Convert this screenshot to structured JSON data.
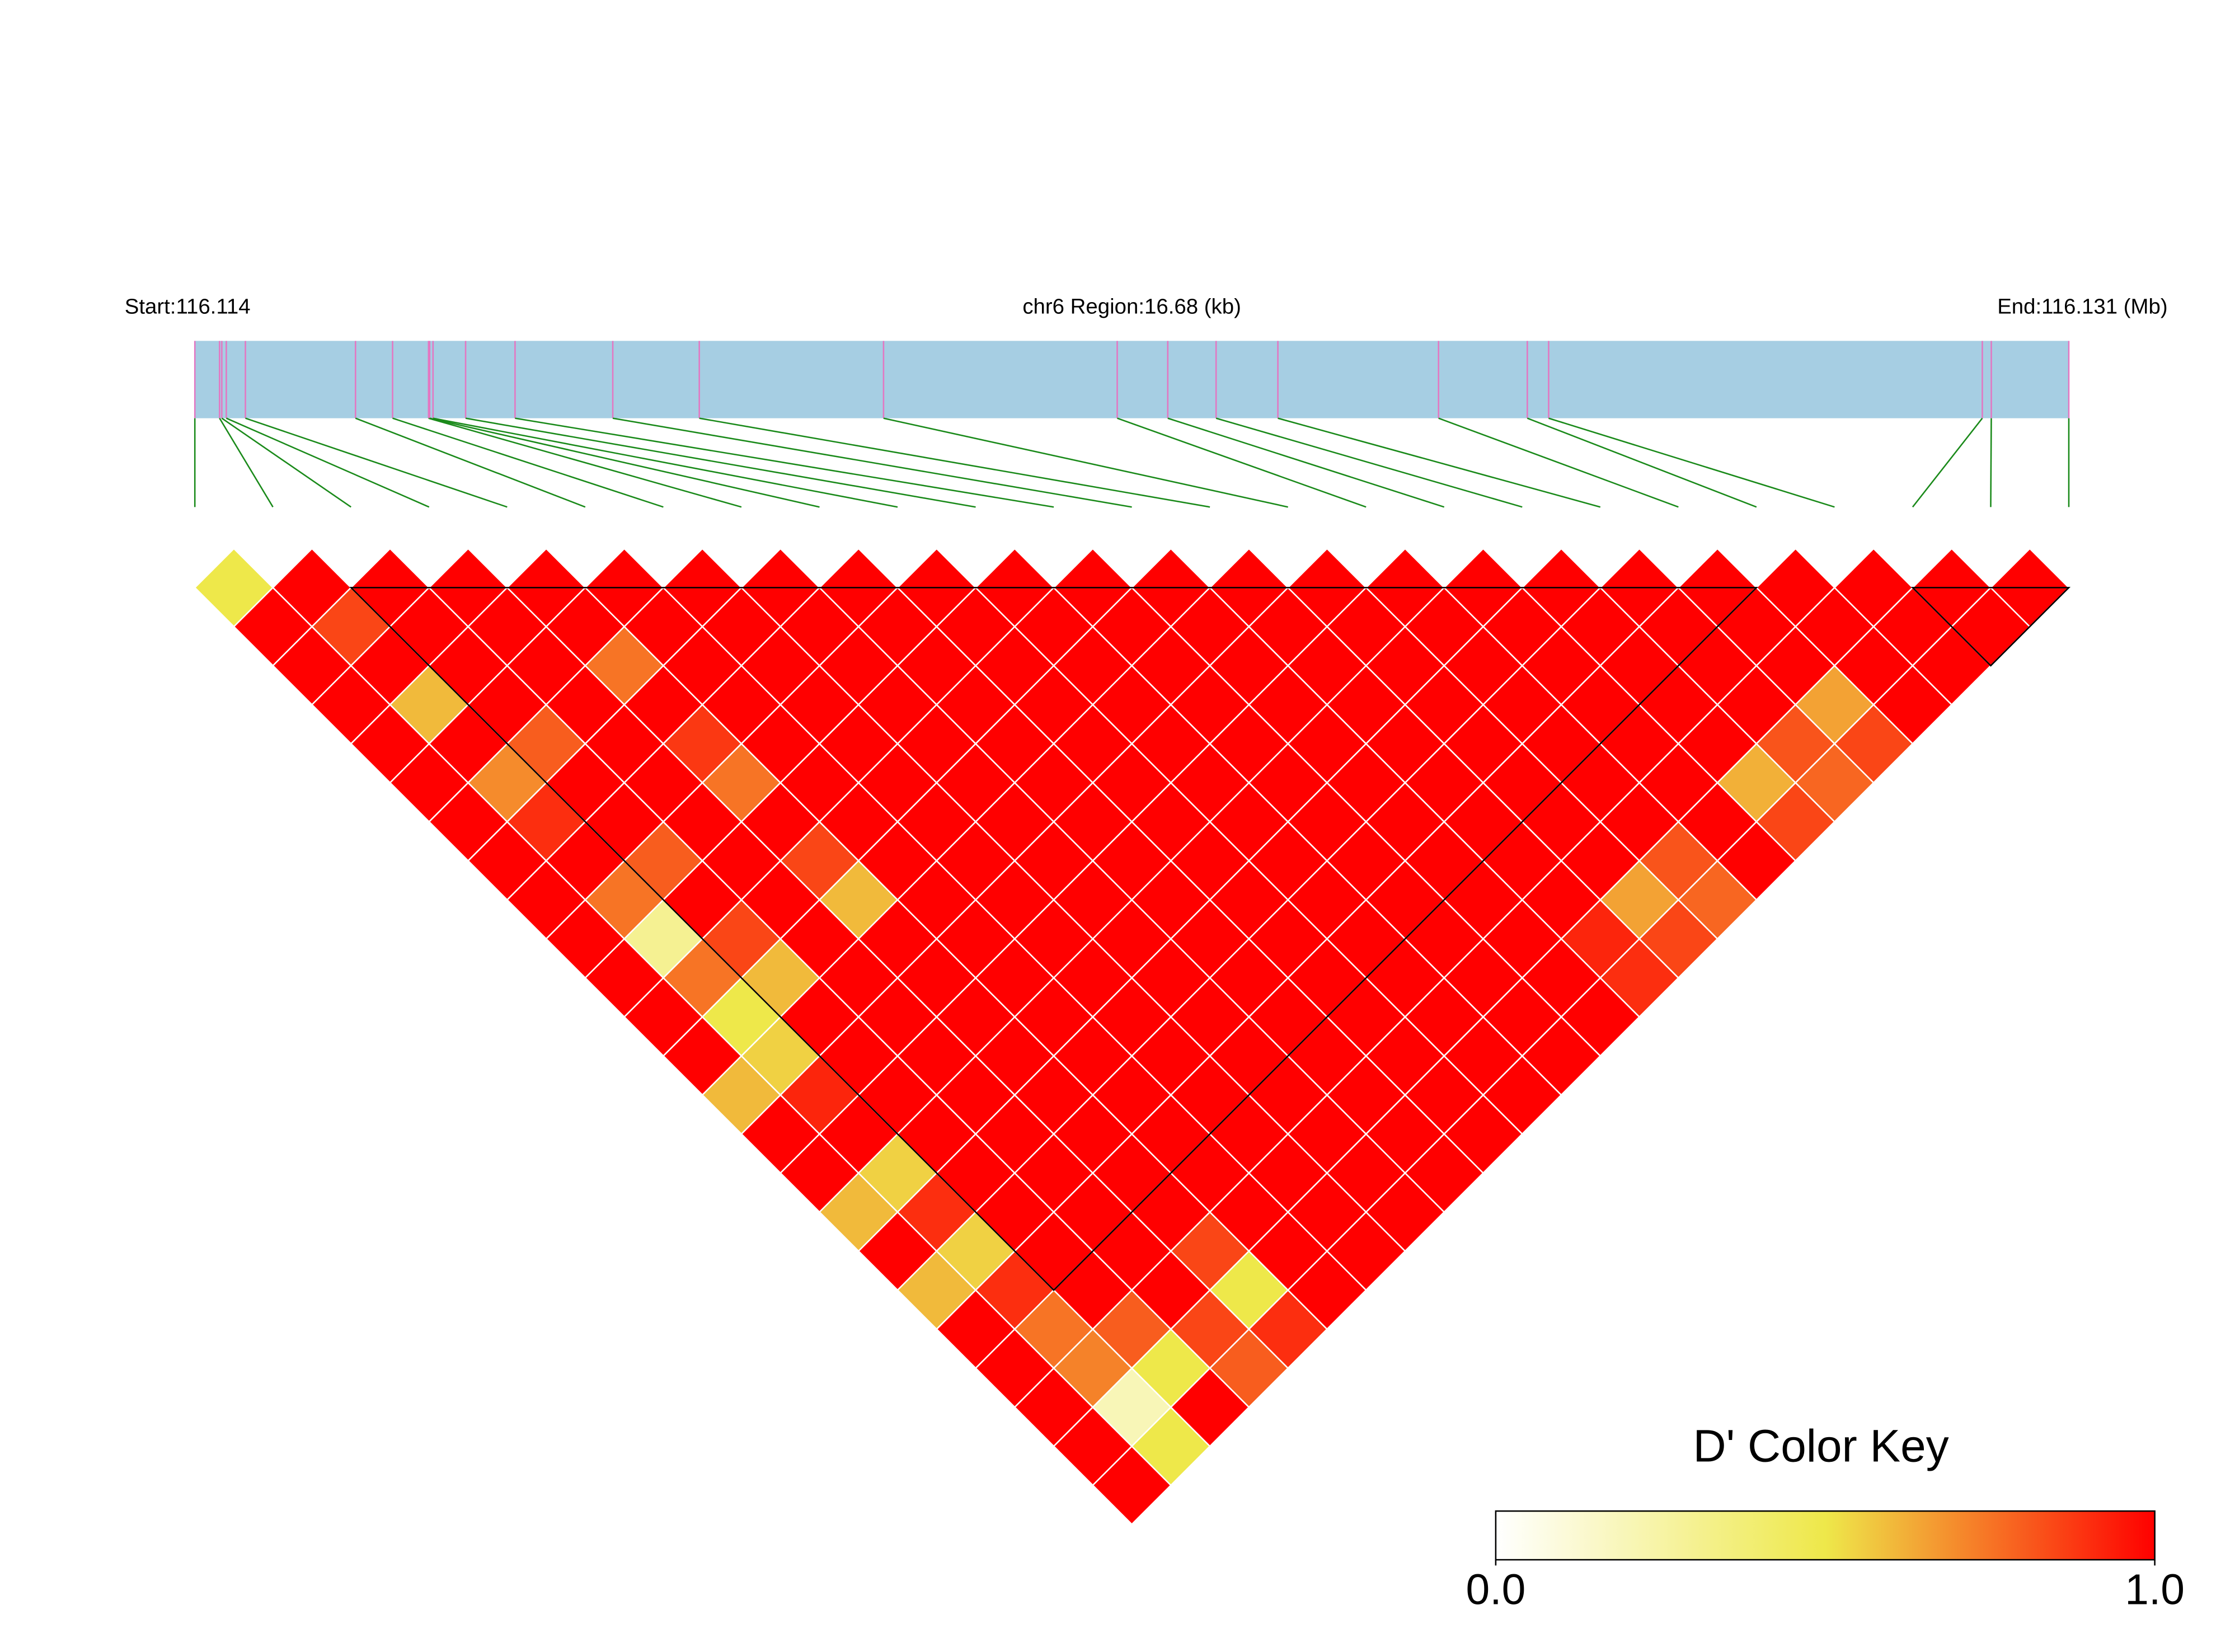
{
  "chart_data": {
    "type": "ld-heatmap",
    "start_label": "Start:116.114",
    "region_label": "chr6 Region:16.68 (kb)",
    "end_label": "End:116.131 (Mb)",
    "xlim": [
      0,
      16.68
    ],
    "snp_positions": [
      0,
      0.22,
      0.24,
      0.28,
      0.45,
      1.43,
      1.76,
      2.08,
      2.09,
      2.12,
      2.41,
      2.85,
      3.72,
      4.49,
      6.13,
      8.21,
      8.66,
      9.09,
      9.64,
      11.07,
      11.86,
      12.05,
      15.91,
      15.99,
      16.68
    ],
    "dprime": [
      [
        0.5,
        1,
        1,
        1,
        1,
        1,
        1,
        1,
        1,
        1,
        1,
        1,
        1,
        0.6,
        1,
        1,
        0.6,
        1,
        0.6,
        1,
        1,
        1,
        1,
        1
      ],
      [
        1,
        0.85,
        1,
        0.6,
        1,
        0.7,
        0.9,
        1,
        0.75,
        0.3,
        0.75,
        0.5,
        0.55,
        0.92,
        1,
        0.55,
        0.9,
        0.55,
        0.9,
        0.75,
        0.72,
        0.2,
        0.5
      ],
      [
        1,
        1,
        1,
        1,
        0.8,
        1,
        1,
        0.8,
        1,
        0.85,
        0.6,
        1,
        1,
        1,
        1,
        1,
        1,
        1,
        1,
        0.8,
        0.5,
        1
      ],
      [
        1,
        1,
        1,
        1,
        1,
        1,
        1,
        1,
        1,
        1,
        1,
        1,
        1,
        1,
        1,
        1,
        1,
        1,
        1,
        0.85,
        0.8
      ],
      [
        1,
        1,
        0.75,
        1,
        0.88,
        0.75,
        1,
        0.85,
        0.6,
        1,
        1,
        1,
        1,
        1,
        1,
        1,
        1,
        0.85,
        0.5,
        0.9
      ],
      [
        1,
        1,
        1,
        1,
        1,
        1,
        1,
        1,
        1,
        1,
        1,
        1,
        1,
        1,
        1,
        1,
        1,
        1,
        1
      ],
      [
        1,
        1,
        1,
        1,
        1,
        1,
        1,
        1,
        1,
        1,
        1,
        1,
        1,
        1,
        1,
        1,
        1,
        1
      ],
      [
        1,
        1,
        1,
        1,
        1,
        1,
        1,
        1,
        1,
        1,
        1,
        1,
        1,
        1,
        1,
        1,
        1
      ],
      [
        1,
        1,
        1,
        1,
        1,
        1,
        1,
        1,
        1,
        1,
        1,
        1,
        1,
        1,
        1,
        1
      ],
      [
        1,
        1,
        1,
        1,
        1,
        1,
        1,
        1,
        1,
        1,
        1,
        1,
        1,
        1,
        1
      ],
      [
        1,
        1,
        1,
        1,
        1,
        1,
        1,
        1,
        1,
        1,
        1,
        1,
        1,
        1
      ],
      [
        1,
        1,
        1,
        1,
        1,
        1,
        1,
        1,
        1,
        1,
        1,
        1,
        1
      ],
      [
        1,
        1,
        1,
        1,
        1,
        1,
        1,
        1,
        1,
        1,
        1,
        1
      ],
      [
        1,
        1,
        1,
        1,
        1,
        1,
        1,
        1,
        1,
        0.92,
        0.9
      ],
      [
        1,
        1,
        1,
        1,
        1,
        1,
        1,
        1,
        0.65,
        0.85
      ],
      [
        1,
        1,
        1,
        1,
        1,
        1,
        1,
        0.82,
        0.78
      ],
      [
        1,
        1,
        1,
        1,
        1,
        1,
        1,
        1
      ],
      [
        1,
        1,
        1,
        1,
        1,
        0.62,
        0.85
      ],
      [
        1,
        1,
        1,
        1,
        0.82,
        0.78
      ],
      [
        1,
        1,
        1,
        0.65,
        0.85
      ],
      [
        1,
        1,
        1,
        1
      ],
      [
        1,
        1,
        1
      ],
      [
        1,
        1
      ],
      [
        1
      ]
    ],
    "blocks": [
      [
        2,
        20
      ],
      [
        22,
        24
      ]
    ],
    "gene_bar_color": "#a6cee3",
    "snp_line_color": "#e377c2",
    "connector_color": "#1a8a1a",
    "colorscale": [
      [
        0,
        "#ffffff"
      ],
      [
        0.5,
        "#eee84a"
      ],
      [
        1,
        "#ff0000"
      ]
    ],
    "key_title": "D' Color Key",
    "key_ticks": [
      {
        "value": 0,
        "label": "0.0"
      },
      {
        "value": 1,
        "label": "1.0"
      }
    ]
  }
}
